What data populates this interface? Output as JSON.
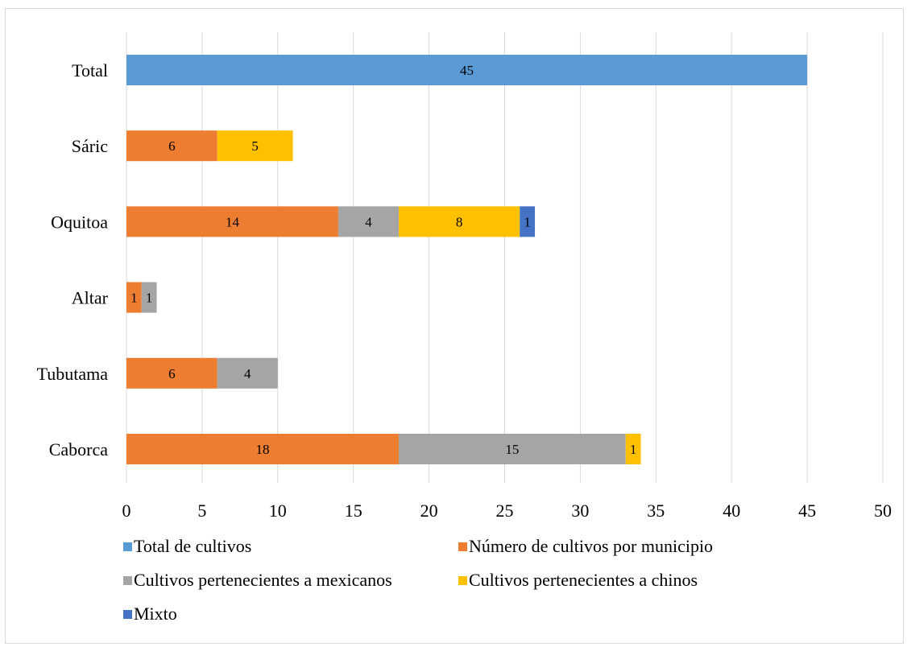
{
  "chart_data": {
    "type": "bar",
    "orientation": "horizontal",
    "stacked": true,
    "categories": [
      "Total",
      "Sáric",
      "Oquitoa",
      "Altar",
      "Tubutama",
      "Caborca"
    ],
    "series": [
      {
        "name": "Total de cultivos",
        "color": "#5B9BD5",
        "values": [
          45,
          null,
          null,
          null,
          null,
          null
        ]
      },
      {
        "name": "Número de cultivos por municipio",
        "color": "#ED7D31",
        "values": [
          null,
          6,
          14,
          1,
          6,
          18
        ]
      },
      {
        "name": "Cultivos pertenecientes a mexicanos",
        "color": "#A5A5A5",
        "values": [
          null,
          null,
          4,
          1,
          4,
          15
        ]
      },
      {
        "name": "Cultivos pertenecientes a chinos",
        "color": "#FFC000",
        "values": [
          null,
          5,
          8,
          null,
          null,
          1
        ]
      },
      {
        "name": "Mixto",
        "color": "#4472C4",
        "values": [
          null,
          null,
          1,
          null,
          null,
          null
        ]
      }
    ],
    "xlim": [
      0,
      50
    ],
    "xticks": [
      0,
      5,
      10,
      15,
      20,
      25,
      30,
      35,
      40,
      45,
      50
    ],
    "grid": true,
    "legend_position": "bottom",
    "title": "",
    "xlabel": "",
    "ylabel": ""
  }
}
